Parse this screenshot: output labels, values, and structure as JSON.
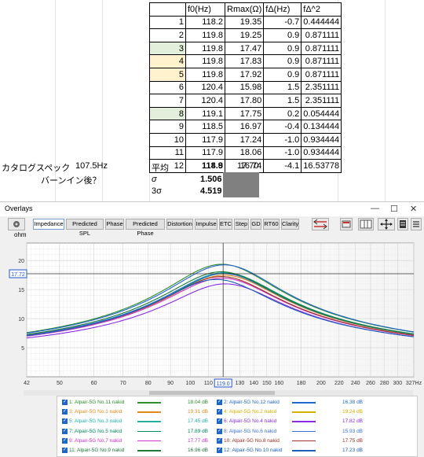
{
  "sheet": {
    "header": [
      "",
      "f0(Hz)",
      "Rmax(Ω)",
      "fΔ(Hz)",
      "fΔ^2"
    ],
    "rows": [
      [
        "1",
        "118.2",
        "19.35",
        "-0.7",
        "0.444444"
      ],
      [
        "2",
        "119.8",
        "19.25",
        "0.9",
        "0.871111"
      ],
      [
        "3",
        "119.8",
        "17.47",
        "0.9",
        "0.871111"
      ],
      [
        "4",
        "119.8",
        "17.83",
        "0.9",
        "0.871111"
      ],
      [
        "5",
        "119.8",
        "17.92",
        "0.9",
        "0.871111"
      ],
      [
        "6",
        "120.4",
        "15.98",
        "1.5",
        "2.351111"
      ],
      [
        "7",
        "120.4",
        "17.80",
        "1.5",
        "2.351111"
      ],
      [
        "8",
        "119.1",
        "17.75",
        "0.2",
        "0.054444"
      ],
      [
        "9",
        "118.5",
        "16.97",
        "-0.4",
        "0.134444"
      ],
      [
        "10",
        "117.9",
        "17.24",
        "-1.0",
        "0.934444"
      ],
      [
        "11",
        "117.9",
        "18.06",
        "-1.0",
        "0.934444"
      ],
      [
        "12",
        "114.8",
        "16.74",
        "-4.1",
        "16.53778"
      ]
    ],
    "catalog_label": "カタログスペック",
    "catalog_value": "107.5Hz",
    "burnin_label": "バーンイン後？",
    "avg_label": "平均",
    "avg_f0": "118.9",
    "avg_rmax": "17.70",
    "sigma_label": "σ",
    "sigma_value": "1.506",
    "three_sigma_label": "3σ",
    "three_sigma_value": "4.519",
    "colors": {
      "green": "#e2efda",
      "yellow": "#fff2cc",
      "gray": "#808080"
    }
  },
  "window": {
    "title": "Overlays",
    "ctrl_min": "—",
    "ctrl_max": "☐",
    "ctrl_close": "✕",
    "tabs": [
      "Impedance",
      "Predicted SPL",
      "Phase",
      "Predicted Phase",
      "Distortion",
      "Impulse",
      "ETC",
      "Step",
      "GD",
      "RT60",
      "Clarity"
    ],
    "active_tab": "Impedance",
    "y_unit": "ohm",
    "cursor_y_value": "17.72",
    "cursor_x_value": "119.0",
    "x_unit_label": "327Hz"
  },
  "chart_data": {
    "type": "line",
    "xscale": "log",
    "xlim": [
      42,
      327
    ],
    "ylim": [
      0,
      23
    ],
    "x_ticks": [
      "42",
      "50",
      "60",
      "70",
      "80",
      "90",
      "100",
      "110",
      "130",
      "140",
      "150",
      "160",
      "180",
      "200",
      "220",
      "240",
      "260",
      "280",
      "300",
      "327Hz"
    ],
    "y_ticks": [
      "5",
      "10",
      "15",
      "20"
    ],
    "cursor": {
      "x": 119.0,
      "y": 17.72
    },
    "series": [
      {
        "name": "1: Alpair-5G No.11 nakid",
        "f0": 118.2,
        "rmax": 19.35,
        "color": "#2e8b2e",
        "level": "18.04 dB"
      },
      {
        "name": "2: Alpair-5G No.12 nakid",
        "f0": 119.8,
        "rmax": 19.25,
        "color": "#2266cc",
        "level": "16.38 dB"
      },
      {
        "name": "3: Alpair-5G No.1 nakid",
        "f0": 119.8,
        "rmax": 17.47,
        "color": "#e08a1e",
        "level": "19.31 dB"
      },
      {
        "name": "4: Alpair-5G No.2 nakid",
        "f0": 119.8,
        "rmax": 17.83,
        "color": "#d4b000",
        "level": "19.24 dB"
      },
      {
        "name": "5: Alpair-5G No.3 nakid",
        "f0": 119.8,
        "rmax": 17.92,
        "color": "#20b2aa",
        "level": "17.45 dB"
      },
      {
        "name": "6: Alpair-5G No.4 nakid",
        "f0": 120.4,
        "rmax": 15.98,
        "color": "#8a2be2",
        "level": "17.82 dB"
      },
      {
        "name": "7: Alpair-5G No.5 nakid",
        "f0": 120.4,
        "rmax": 17.8,
        "color": "#008b5a",
        "level": "17.89 dB"
      },
      {
        "name": "8: Alpair-5G No.6 nakid",
        "f0": 119.1,
        "rmax": 17.75,
        "color": "#3a6fd8",
        "level": "15.93 dB"
      },
      {
        "name": "9: Alpair-5G No.7 nakid",
        "f0": 118.5,
        "rmax": 16.97,
        "color": "#cc33cc",
        "level": "17.77 dB"
      },
      {
        "name": "10: Alpair-5G No.8 nakid",
        "f0": 117.9,
        "rmax": 17.24,
        "color": "#a0302a",
        "level": "17.75 dB"
      },
      {
        "name": "11: Alpair-5G No.9 nakid",
        "f0": 117.9,
        "rmax": 18.06,
        "color": "#1f7a3a",
        "level": "16.96 dB"
      },
      {
        "name": "12: Alpair-5G No.10 nakid",
        "f0": 114.8,
        "rmax": 16.74,
        "color": "#1c5fb8",
        "level": "17.23 dB"
      }
    ]
  }
}
